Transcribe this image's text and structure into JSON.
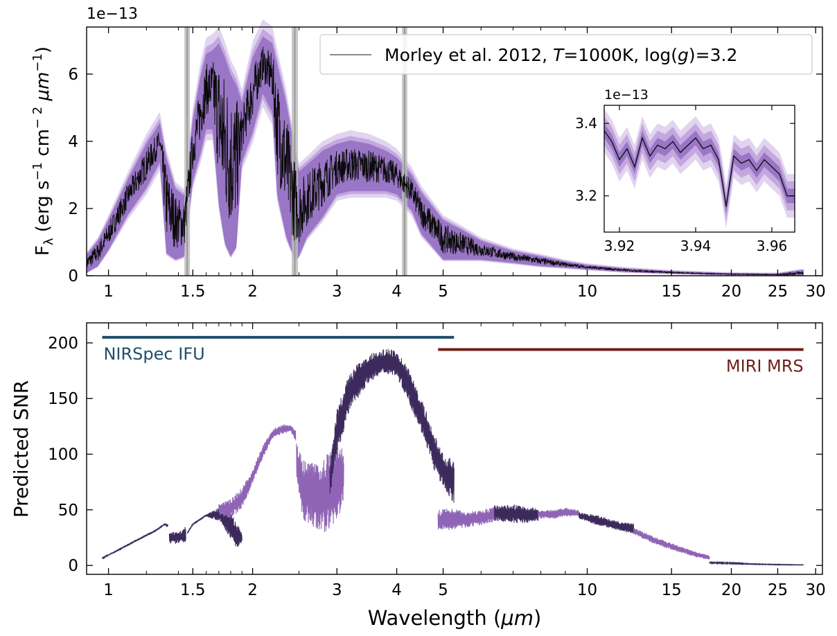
{
  "chart_data": [
    {
      "type": "line",
      "panel": "spectrum",
      "ylabel_main": "F",
      "ylabel_sub": "λ",
      "ylabel_rest": " (erg s",
      "ylabel_exp1": "−1",
      "ylabel_mid": " cm",
      "ylabel_exp2": "− 2",
      "ylabel_mu": " μm",
      "ylabel_exp3": "−1",
      "ylabel_close": ")",
      "offset_text": "1e−13",
      "x_scale": "log",
      "xlim": [
        0.9,
        31
      ],
      "ylim": [
        0,
        7.4
      ],
      "x_ticks": [
        1,
        1.5,
        2,
        3,
        4,
        5,
        10,
        15,
        20,
        25,
        30
      ],
      "x_tick_labels": [
        "1",
        "1.5",
        "2",
        "3",
        "4",
        "5",
        "10",
        "15",
        "20",
        "25",
        "30"
      ],
      "y_ticks": [
        0,
        2,
        4,
        6
      ],
      "y_tick_labels": [
        "0",
        "2",
        "4",
        "6"
      ],
      "legend": {
        "placement": "top-right",
        "prefix": "Morley et al. 2012, ",
        "t_italic": "T",
        "t_rest": "=1000K, log(",
        "g_italic": "g",
        "g_rest": ")=3.2"
      },
      "gap_bands_um": [
        [
          1.45,
          1.47
        ],
        [
          2.43,
          2.47
        ],
        [
          4.13,
          4.18
        ]
      ],
      "envelope_x": [
        0.9,
        0.95,
        1.0,
        1.1,
        1.2,
        1.28,
        1.32,
        1.38,
        1.44,
        1.5,
        1.56,
        1.6,
        1.65,
        1.7,
        1.75,
        1.8,
        1.85,
        1.9,
        2.0,
        2.1,
        2.2,
        2.25,
        2.35,
        2.45,
        2.5,
        2.6,
        2.8,
        3.0,
        3.2,
        3.5,
        3.8,
        4.0,
        4.3,
        4.5,
        5.0,
        5.5,
        6.0,
        7.0,
        8.0,
        9.0,
        10.0,
        12.0,
        15.0,
        18.0,
        20.0,
        25.0,
        28.0
      ],
      "envelope_top": [
        0.6,
        1.0,
        1.6,
        2.8,
        3.8,
        4.4,
        3.4,
        2.5,
        2.3,
        4.5,
        5.8,
        6.4,
        6.5,
        6.7,
        6.3,
        5.8,
        5.5,
        5.0,
        6.3,
        6.9,
        6.7,
        6.1,
        5.0,
        3.6,
        3.0,
        3.2,
        3.6,
        3.8,
        3.9,
        3.8,
        3.6,
        3.4,
        2.9,
        2.4,
        1.6,
        1.3,
        1.0,
        0.7,
        0.55,
        0.4,
        0.3,
        0.2,
        0.12,
        0.08,
        0.06,
        0.05,
        0.15
      ],
      "envelope_bottom": [
        0.1,
        0.3,
        0.8,
        1.9,
        2.7,
        3.5,
        0.7,
        0.5,
        0.6,
        2.9,
        3.8,
        4.5,
        4.5,
        2.2,
        1.0,
        0.6,
        0.9,
        3.5,
        4.4,
        5.6,
        5.0,
        2.5,
        1.2,
        0.5,
        0.6,
        1.2,
        1.8,
        2.5,
        2.6,
        2.6,
        2.6,
        2.5,
        2.0,
        1.3,
        0.5,
        0.5,
        0.5,
        0.4,
        0.3,
        0.25,
        0.2,
        0.12,
        0.07,
        0.04,
        0.03,
        0.02,
        0.0
      ],
      "colors": {
        "model_line": "#0a0a0a",
        "band_outer": "#e1d4ef",
        "band_mid": "#c3a7de",
        "band_inner": "#9a76c6",
        "gap_band": "#bdbdbd"
      },
      "inset": {
        "offset_text": "1e−13",
        "xlim": [
          3.916,
          3.966
        ],
        "ylim": [
          3.1,
          3.45
        ],
        "x_ticks": [
          3.92,
          3.94,
          3.96
        ],
        "x_tick_labels": [
          "3.92",
          "3.94",
          "3.96"
        ],
        "y_ticks": [
          3.2,
          3.4
        ],
        "y_tick_labels": [
          "3.2",
          "3.4"
        ],
        "x": [
          3.916,
          3.918,
          3.92,
          3.922,
          3.924,
          3.926,
          3.928,
          3.93,
          3.932,
          3.934,
          3.936,
          3.938,
          3.94,
          3.942,
          3.944,
          3.946,
          3.947,
          3.948,
          3.95,
          3.952,
          3.954,
          3.956,
          3.958,
          3.96,
          3.962,
          3.964,
          3.966
        ],
        "y": [
          3.38,
          3.35,
          3.3,
          3.33,
          3.28,
          3.36,
          3.31,
          3.34,
          3.33,
          3.35,
          3.32,
          3.34,
          3.36,
          3.33,
          3.34,
          3.3,
          3.24,
          3.17,
          3.31,
          3.29,
          3.3,
          3.27,
          3.3,
          3.28,
          3.26,
          3.2,
          3.2
        ]
      }
    },
    {
      "type": "line",
      "panel": "snr",
      "xlabel_text": "Wavelength (",
      "xlabel_mu": "μm",
      "xlabel_close": ")",
      "ylabel": "Predicted SNR",
      "x_scale": "log",
      "xlim": [
        0.9,
        31
      ],
      "ylim": [
        -8,
        218
      ],
      "x_ticks": [
        1,
        1.5,
        2,
        3,
        4,
        5,
        10,
        15,
        20,
        25,
        30
      ],
      "x_tick_labels": [
        "1",
        "1.5",
        "2",
        "3",
        "4",
        "5",
        "10",
        "15",
        "20",
        "25",
        "30"
      ],
      "y_ticks": [
        0,
        50,
        100,
        150,
        200
      ],
      "y_tick_labels": [
        "0",
        "50",
        "100",
        "150",
        "200"
      ],
      "instruments": [
        {
          "name": "NIRSpec IFU",
          "range_um": [
            0.97,
            5.27
          ],
          "level": 205,
          "color": "#1f4e6b"
        },
        {
          "name": "MIRI MRS",
          "range_um": [
            4.88,
            28.3
          ],
          "level": 194,
          "color": "#6e1f18"
        }
      ],
      "series": [
        {
          "color": "#3d2a5c",
          "x": [
            0.97,
            1.05,
            1.15,
            1.25,
            1.31,
            1.33
          ],
          "top": [
            7,
            15,
            24,
            32,
            38,
            37
          ],
          "bottom": [
            6,
            13,
            22,
            30,
            36,
            34
          ]
        },
        {
          "color": "#3d2a5c",
          "x": [
            1.34,
            1.37,
            1.4,
            1.43,
            1.45
          ],
          "top": [
            29,
            31,
            30,
            32,
            36
          ],
          "bottom": [
            20,
            19,
            20,
            21,
            20
          ]
        },
        {
          "color": "#3d2a5c",
          "x": [
            1.46,
            1.5,
            1.6,
            1.7,
            1.8,
            1.85,
            1.9
          ],
          "top": [
            30,
            38,
            46,
            52,
            48,
            38,
            30
          ],
          "bottom": [
            28,
            36,
            44,
            40,
            24,
            14,
            20
          ]
        },
        {
          "color": "#8f64b5",
          "x": [
            1.7,
            1.8,
            1.9,
            2.0,
            2.1,
            2.2,
            2.3,
            2.4,
            2.46
          ],
          "top": [
            55,
            60,
            70,
            86,
            108,
            122,
            127,
            126,
            122
          ],
          "bottom": [
            45,
            43,
            50,
            74,
            96,
            114,
            118,
            120,
            112
          ]
        },
        {
          "color": "#8f64b5",
          "x": [
            2.47,
            2.55,
            2.65,
            2.75,
            2.85,
            2.95,
            3.05,
            3.1
          ],
          "top": [
            110,
            96,
            98,
            90,
            100,
            106,
            110,
            100
          ],
          "bottom": [
            80,
            40,
            36,
            28,
            30,
            36,
            44,
            60
          ]
        },
        {
          "color": "#3d2a5c",
          "x": [
            2.9,
            3.0,
            3.2,
            3.5,
            3.8,
            4.0,
            4.2,
            4.4,
            4.6,
            4.8,
            5.0,
            5.27
          ],
          "top": [
            90,
            140,
            175,
            190,
            196,
            192,
            180,
            160,
            140,
            118,
            100,
            95
          ],
          "bottom": [
            60,
            100,
            140,
            165,
            172,
            170,
            150,
            130,
            110,
            84,
            70,
            55
          ]
        },
        {
          "color": "#8f64b5",
          "x": [
            4.88,
            5.2,
            5.6,
            6.0,
            6.5
          ],
          "top": [
            50,
            52,
            48,
            50,
            53
          ],
          "bottom": [
            30,
            32,
            34,
            36,
            40
          ]
        },
        {
          "color": "#3d2a5c",
          "x": [
            6.4,
            7.0,
            7.5,
            7.9
          ],
          "top": [
            54,
            55,
            52,
            52
          ],
          "bottom": [
            40,
            38,
            38,
            40
          ]
        },
        {
          "color": "#8f64b5",
          "x": [
            7.9,
            8.5,
            9.0,
            9.6
          ],
          "top": [
            50,
            50,
            52,
            50
          ],
          "bottom": [
            42,
            42,
            44,
            44
          ]
        },
        {
          "color": "#3d2a5c",
          "x": [
            9.6,
            10.5,
            11.5,
            12.5
          ],
          "top": [
            48,
            45,
            40,
            38
          ],
          "bottom": [
            42,
            36,
            32,
            28
          ]
        },
        {
          "color": "#8f64b5",
          "x": [
            12.5,
            14.0,
            15.5,
            17.0,
            18.0
          ],
          "top": [
            34,
            25,
            18,
            12,
            9
          ],
          "bottom": [
            28,
            18,
            12,
            7,
            5
          ]
        },
        {
          "color": "#3d2a5c",
          "x": [
            18.0,
            20.0,
            22.0,
            25.0,
            28.3
          ],
          "top": [
            3,
            2.5,
            1.5,
            1,
            0.6
          ],
          "bottom": [
            2,
            1.5,
            1,
            0.5,
            0.3
          ]
        }
      ]
    }
  ]
}
